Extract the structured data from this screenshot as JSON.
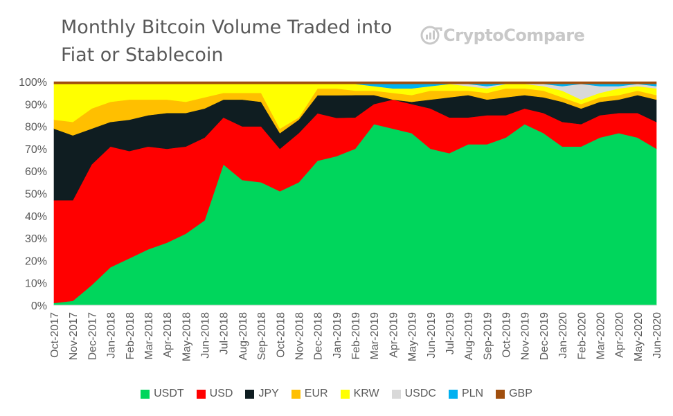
{
  "chart_data": {
    "type": "area",
    "stacked": true,
    "normalized": true,
    "title_lines": [
      "Monthly Bitcoin Volume Traded into",
      "Fiat or Stablecoin"
    ],
    "watermark": "CryptoCompare",
    "ylim": [
      0,
      100
    ],
    "y_ticks": [
      "0%",
      "10%",
      "20%",
      "30%",
      "40%",
      "50%",
      "60%",
      "70%",
      "80%",
      "90%",
      "100%"
    ],
    "categories": [
      "Oct-2017",
      "Nov-2017",
      "Dec-2017",
      "Jan-2018",
      "Feb-2018",
      "Mar-2018",
      "Apr-2018",
      "May-2018",
      "Jun-2018",
      "Jul-2018",
      "Aug-2018",
      "Sep-2018",
      "Oct-2018",
      "Nov-2018",
      "Dec-2018",
      "Jan-2019",
      "Feb-2019",
      "Mar-2019",
      "Apr-2019",
      "May-2019",
      "Jun-2019",
      "Jul-2019",
      "Aug-2019",
      "Sep-2019",
      "Oct-2019",
      "Nov-2019",
      "Dec-2019",
      "Jan-2020",
      "Feb-2020",
      "Mar-2020",
      "Apr-2020",
      "May-2020",
      "Jun-2020"
    ],
    "legend_position": "bottom",
    "grid": false,
    "series": [
      {
        "name": "USDT",
        "color": "#00d65c",
        "values": [
          1,
          2,
          9,
          17,
          21,
          25,
          28,
          32,
          38,
          63,
          56,
          55,
          51,
          55,
          64,
          66,
          70,
          81,
          79,
          77,
          70,
          68,
          72,
          72,
          75,
          81,
          77,
          71,
          71,
          75,
          77,
          75,
          70
        ]
      },
      {
        "name": "USD",
        "color": "#ff0000",
        "values": [
          46,
          45,
          54,
          54,
          48,
          46,
          42,
          39,
          37,
          21,
          24,
          25,
          19,
          22,
          21,
          17,
          14,
          9,
          13,
          13,
          18,
          16,
          12,
          13,
          10,
          7,
          9,
          11,
          10,
          10,
          9,
          11,
          12
        ]
      },
      {
        "name": "JPY",
        "color": "#0f1d21",
        "values": [
          32,
          29,
          16,
          11,
          14,
          14,
          16,
          15,
          13,
          8,
          12,
          11,
          7,
          6,
          8,
          10,
          10,
          4,
          0,
          1,
          4,
          9,
          10,
          7,
          8,
          6,
          7,
          9,
          7,
          6,
          6,
          8,
          10
        ]
      },
      {
        "name": "EUR",
        "color": "#ffbf00",
        "values": [
          4,
          6,
          9,
          9,
          9,
          7,
          6,
          5,
          5,
          3,
          3,
          4,
          2,
          1,
          3,
          3,
          2,
          2,
          3,
          3,
          4,
          3,
          2,
          3,
          4,
          3,
          3,
          2,
          2,
          2,
          2,
          2,
          2
        ]
      },
      {
        "name": "KRW",
        "color": "#ffff00",
        "values": [
          16,
          17,
          11,
          8,
          7,
          7,
          7,
          8,
          6,
          4,
          4,
          4,
          20,
          15,
          2,
          2,
          3,
          2,
          2,
          3,
          2,
          3,
          2,
          2,
          2,
          2,
          2,
          3,
          2,
          2,
          3,
          2,
          3
        ]
      },
      {
        "name": "USDC",
        "color": "#d9d9d9",
        "values": [
          0,
          0,
          0,
          0,
          0,
          0,
          0,
          0,
          0,
          0,
          0,
          0,
          0,
          0,
          0,
          0,
          0,
          0,
          0,
          0,
          0,
          0,
          1,
          1,
          0,
          0,
          1,
          2,
          7,
          3,
          1,
          1,
          1
        ]
      },
      {
        "name": "PLN",
        "color": "#00b0f0",
        "values": [
          0,
          0,
          0,
          0,
          0,
          0,
          0,
          0,
          0,
          0,
          0,
          0,
          0,
          0,
          0,
          0,
          0,
          1,
          2,
          2,
          1,
          0,
          0,
          1,
          0,
          0,
          0,
          1,
          0,
          1,
          1,
          0,
          1
        ]
      },
      {
        "name": "GBP",
        "color": "#a04e0d",
        "values": [
          1,
          1,
          1,
          1,
          1,
          1,
          1,
          1,
          1,
          1,
          1,
          1,
          1,
          1,
          1,
          1,
          1,
          1,
          1,
          1,
          1,
          1,
          1,
          1,
          1,
          1,
          1,
          1,
          1,
          1,
          1,
          1,
          1
        ]
      }
    ]
  }
}
